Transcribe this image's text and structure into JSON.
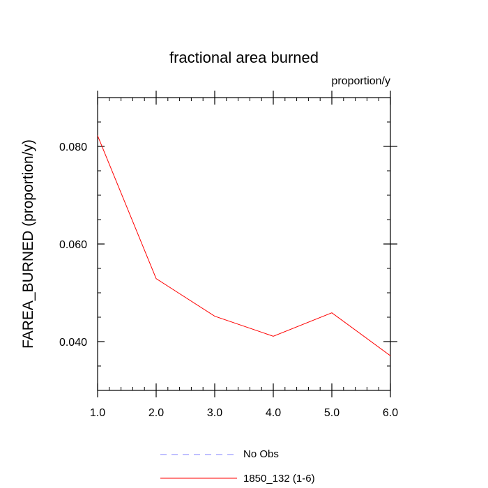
{
  "chart_data": {
    "type": "line",
    "title": "fractional area burned",
    "units_label": "proportion/y",
    "xlabel": "",
    "ylabel": "FAREA_BURNED  (proportion/y)",
    "xlim": [
      1.0,
      6.0
    ],
    "ylim": [
      0.03,
      0.09
    ],
    "x_ticks": [
      1.0,
      2.0,
      3.0,
      4.0,
      5.0,
      6.0
    ],
    "x_tick_labels": [
      "1.0",
      "2.0",
      "3.0",
      "4.0",
      "5.0",
      "6.0"
    ],
    "y_ticks": [
      0.04,
      0.06,
      0.08
    ],
    "y_tick_labels": [
      "0.040",
      "0.060",
      "0.080"
    ],
    "series": [
      {
        "name": "1850_132 (1-6)",
        "color": "#ff0000",
        "style": "solid",
        "x": [
          1.0,
          2.0,
          3.0,
          4.0,
          5.0,
          6.0
        ],
        "y": [
          0.0822,
          0.0529,
          0.0452,
          0.0411,
          0.0459,
          0.0371
        ]
      }
    ],
    "legend": [
      {
        "label": "No Obs",
        "color": "#8080ff",
        "style": "dashed"
      },
      {
        "label": "1850_132 (1-6)",
        "color": "#ff0000",
        "style": "solid"
      }
    ],
    "legend_placement": "bottom-center",
    "grid": false
  }
}
